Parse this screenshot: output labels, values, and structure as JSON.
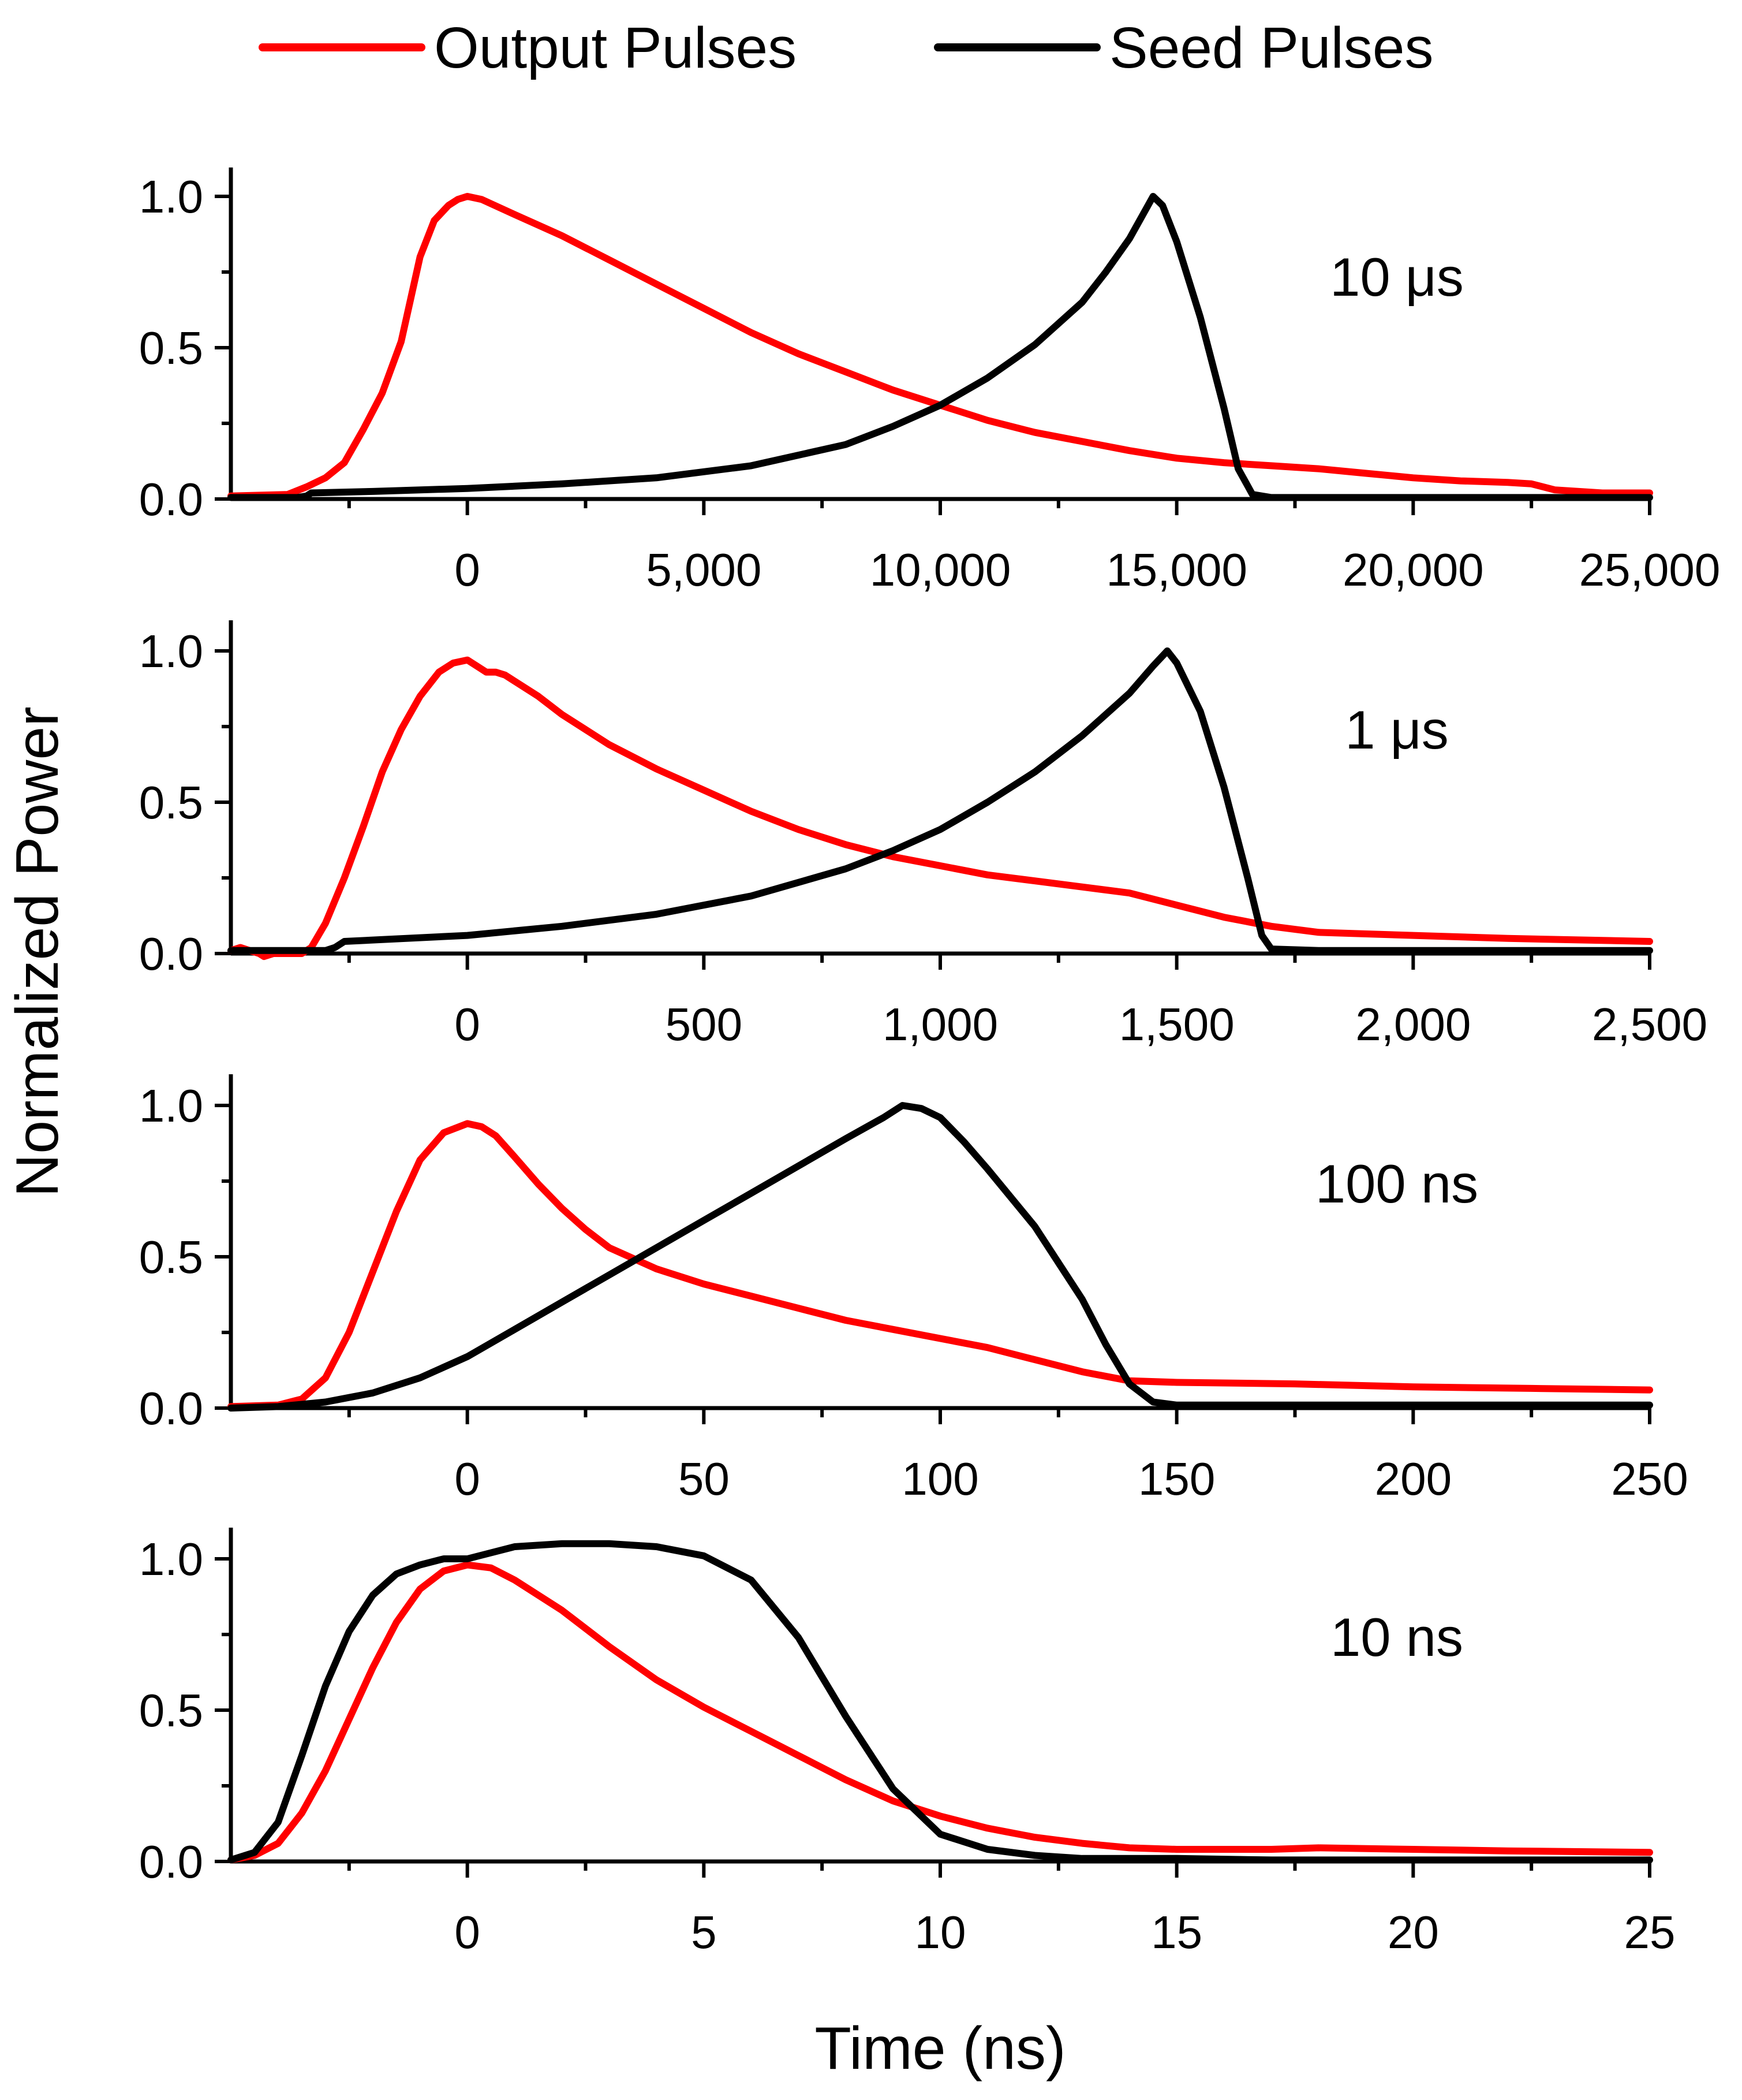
{
  "chart_data": {
    "type": "line",
    "ylabel": "Normalized Power",
    "xlabel": "Time (ns)",
    "legend": {
      "placement": "top-center",
      "entries": [
        {
          "name": "Output Pulses",
          "color": "#ff0000"
        },
        {
          "name": "Seed Pulses",
          "color": "#000000"
        }
      ]
    },
    "panels": [
      {
        "label": "10 μs",
        "xlim": [
          -5000,
          25000
        ],
        "ylim": [
          0,
          1.1
        ],
        "xticks": [
          0,
          5000,
          10000,
          15000,
          20000,
          25000
        ],
        "xtick_labels": [
          "0",
          "5,000",
          "10,000",
          "15,000",
          "20,000",
          "25,000"
        ],
        "yticks": [
          0,
          0.5,
          1.0
        ],
        "ytick_labels": [
          "0.0",
          "0.5",
          "1.0"
        ],
        "series": [
          {
            "name": "Output Pulses",
            "color": "#ff0000",
            "x": [
              -5000,
              -3800,
              -3400,
              -3000,
              -2600,
              -2200,
              -1800,
              -1400,
              -1000,
              -700,
              -400,
              -200,
              0,
              300,
              1000,
              2000,
              3000,
              4000,
              5000,
              6000,
              7000,
              8000,
              9000,
              10000,
              11000,
              12000,
              13000,
              14000,
              15000,
              16000,
              17000,
              18000,
              19000,
              20000,
              21000,
              22000,
              22500,
              23000,
              24000,
              25000
            ],
            "y": [
              0.01,
              0.015,
              0.04,
              0.07,
              0.12,
              0.23,
              0.35,
              0.52,
              0.8,
              0.92,
              0.97,
              0.99,
              1.0,
              0.99,
              0.94,
              0.87,
              0.79,
              0.71,
              0.63,
              0.55,
              0.48,
              0.42,
              0.36,
              0.31,
              0.26,
              0.22,
              0.19,
              0.16,
              0.135,
              0.12,
              0.11,
              0.1,
              0.085,
              0.07,
              0.06,
              0.055,
              0.05,
              0.03,
              0.02,
              0.02
            ]
          },
          {
            "name": "Seed Pulses",
            "color": "#000000",
            "x": [
              -5000,
              -3600,
              -3400,
              -3300,
              -2000,
              0,
              2000,
              4000,
              6000,
              8000,
              9000,
              10000,
              11000,
              12000,
              13000,
              13500,
              14000,
              14500,
              14700,
              15000,
              15500,
              16000,
              16300,
              16600,
              17000,
              18000,
              20000,
              22000,
              22800,
              25000
            ],
            "y": [
              0.005,
              0.005,
              0.01,
              0.02,
              0.025,
              0.035,
              0.05,
              0.07,
              0.11,
              0.18,
              0.24,
              0.31,
              0.4,
              0.51,
              0.65,
              0.75,
              0.86,
              1.0,
              0.97,
              0.85,
              0.6,
              0.3,
              0.1,
              0.015,
              0.005,
              0.005,
              0.005,
              0.005,
              0.005,
              0.005
            ]
          }
        ]
      },
      {
        "label": "1 μs",
        "xlim": [
          -500,
          2500
        ],
        "ylim": [
          0,
          1.1
        ],
        "xticks": [
          0,
          500,
          1000,
          1500,
          2000,
          2500
        ],
        "xtick_labels": [
          "0",
          "500",
          "1,000",
          "1,500",
          "2,000",
          "2,500"
        ],
        "yticks": [
          0,
          0.5,
          1.0
        ],
        "ytick_labels": [
          "0.0",
          "0.5",
          "1.0"
        ],
        "series": [
          {
            "name": "Output Pulses",
            "color": "#ff0000",
            "x": [
              -500,
              -480,
              -460,
              -440,
              -430,
              -410,
              -390,
              -370,
              -350,
              -330,
              -300,
              -260,
              -220,
              -180,
              -140,
              -100,
              -60,
              -30,
              0,
              20,
              40,
              60,
              80,
              100,
              150,
              200,
              300,
              400,
              500,
              600,
              700,
              800,
              900,
              1000,
              1100,
              1200,
              1300,
              1400,
              1500,
              1600,
              1700,
              1800,
              2000,
              2200,
              2500
            ],
            "y": [
              0.01,
              0.02,
              0.01,
              0.0,
              -0.01,
              0.0,
              0.0,
              0.0,
              0.0,
              0.02,
              0.1,
              0.25,
              0.42,
              0.6,
              0.74,
              0.85,
              0.93,
              0.96,
              0.97,
              0.95,
              0.93,
              0.93,
              0.92,
              0.9,
              0.85,
              0.79,
              0.69,
              0.61,
              0.54,
              0.47,
              0.41,
              0.36,
              0.32,
              0.29,
              0.26,
              0.24,
              0.22,
              0.2,
              0.16,
              0.12,
              0.09,
              0.07,
              0.06,
              0.05,
              0.04
            ]
          },
          {
            "name": "Seed Pulses",
            "color": "#000000",
            "x": [
              -500,
              -300,
              -280,
              -260,
              0,
              200,
              400,
              600,
              800,
              900,
              1000,
              1100,
              1200,
              1300,
              1400,
              1450,
              1480,
              1500,
              1550,
              1600,
              1650,
              1680,
              1700,
              1800,
              2000,
              2500
            ],
            "y": [
              0.01,
              0.01,
              0.02,
              0.04,
              0.06,
              0.09,
              0.13,
              0.19,
              0.28,
              0.34,
              0.41,
              0.5,
              0.6,
              0.72,
              0.86,
              0.95,
              1.0,
              0.96,
              0.8,
              0.55,
              0.25,
              0.06,
              0.015,
              0.01,
              0.01,
              0.01
            ]
          }
        ]
      },
      {
        "label": "100 ns",
        "xlim": [
          -50,
          250
        ],
        "ylim": [
          0,
          1.1
        ],
        "xticks": [
          0,
          50,
          100,
          150,
          200,
          250
        ],
        "xtick_labels": [
          "0",
          "50",
          "100",
          "150",
          "200",
          "250"
        ],
        "yticks": [
          0,
          0.5,
          1.0
        ],
        "ytick_labels": [
          "0.0",
          "0.5",
          "1.0"
        ],
        "series": [
          {
            "name": "Output Pulses",
            "color": "#ff0000",
            "x": [
              -50,
              -40,
              -35,
              -30,
              -25,
              -20,
              -15,
              -10,
              -5,
              0,
              3,
              6,
              10,
              15,
              20,
              25,
              30,
              40,
              50,
              60,
              70,
              80,
              90,
              100,
              110,
              120,
              130,
              140,
              150,
              175,
              200,
              225,
              250
            ],
            "y": [
              0.005,
              0.01,
              0.03,
              0.1,
              0.25,
              0.45,
              0.65,
              0.82,
              0.91,
              0.94,
              0.93,
              0.9,
              0.83,
              0.74,
              0.66,
              0.59,
              0.53,
              0.46,
              0.41,
              0.37,
              0.33,
              0.29,
              0.26,
              0.23,
              0.2,
              0.16,
              0.12,
              0.09,
              0.085,
              0.08,
              0.07,
              0.065,
              0.06
            ]
          },
          {
            "name": "Seed Pulses",
            "color": "#000000",
            "x": [
              -50,
              -40,
              -30,
              -20,
              -10,
              0,
              10,
              20,
              30,
              40,
              50,
              60,
              70,
              80,
              88,
              92,
              96,
              100,
              105,
              110,
              120,
              130,
              135,
              140,
              145,
              150,
              175,
              200,
              250
            ],
            "y": [
              0.0,
              0.005,
              0.02,
              0.05,
              0.1,
              0.17,
              0.26,
              0.35,
              0.44,
              0.53,
              0.62,
              0.71,
              0.8,
              0.89,
              0.96,
              1.0,
              0.99,
              0.96,
              0.88,
              0.79,
              0.6,
              0.36,
              0.21,
              0.08,
              0.02,
              0.01,
              0.01,
              0.01,
              0.01
            ]
          }
        ]
      },
      {
        "label": "10 ns",
        "xlim": [
          -5,
          25
        ],
        "ylim": [
          0,
          1.1
        ],
        "xticks": [
          0,
          5,
          10,
          15,
          20,
          25
        ],
        "xtick_labels": [
          "0",
          "5",
          "10",
          "15",
          "20",
          "25"
        ],
        "yticks": [
          0,
          0.5,
          1.0
        ],
        "ytick_labels": [
          "0.0",
          "0.5",
          "1.0"
        ],
        "series": [
          {
            "name": "Output Pulses",
            "color": "#ff0000",
            "x": [
              -5,
              -4.5,
              -4,
              -3.5,
              -3,
              -2.5,
              -2,
              -1.5,
              -1,
              -0.5,
              0,
              0.5,
              1,
              2,
              3,
              4,
              5,
              6,
              7,
              8,
              9,
              10,
              11,
              12,
              13,
              14,
              15,
              17,
              18,
              20,
              22,
              25
            ],
            "y": [
              0.005,
              0.02,
              0.06,
              0.16,
              0.3,
              0.47,
              0.64,
              0.79,
              0.9,
              0.96,
              0.98,
              0.97,
              0.93,
              0.83,
              0.71,
              0.6,
              0.51,
              0.43,
              0.35,
              0.27,
              0.2,
              0.15,
              0.11,
              0.08,
              0.06,
              0.045,
              0.04,
              0.04,
              0.045,
              0.04,
              0.035,
              0.03
            ]
          },
          {
            "name": "Seed Pulses",
            "color": "#000000",
            "x": [
              -5,
              -4.5,
              -4,
              -3.5,
              -3,
              -2.5,
              -2,
              -1.5,
              -1,
              -0.5,
              0,
              1,
              2,
              3,
              4,
              5,
              6,
              7,
              8,
              9,
              10,
              11,
              12,
              13,
              15,
              17,
              18.5,
              20,
              25
            ],
            "y": [
              0.005,
              0.03,
              0.13,
              0.35,
              0.58,
              0.76,
              0.88,
              0.95,
              0.98,
              1.0,
              1.0,
              1.04,
              1.05,
              1.05,
              1.04,
              1.01,
              0.93,
              0.74,
              0.48,
              0.24,
              0.09,
              0.04,
              0.02,
              0.01,
              0.01,
              0.005,
              0.005,
              0.005,
              0.005
            ]
          }
        ]
      }
    ]
  }
}
